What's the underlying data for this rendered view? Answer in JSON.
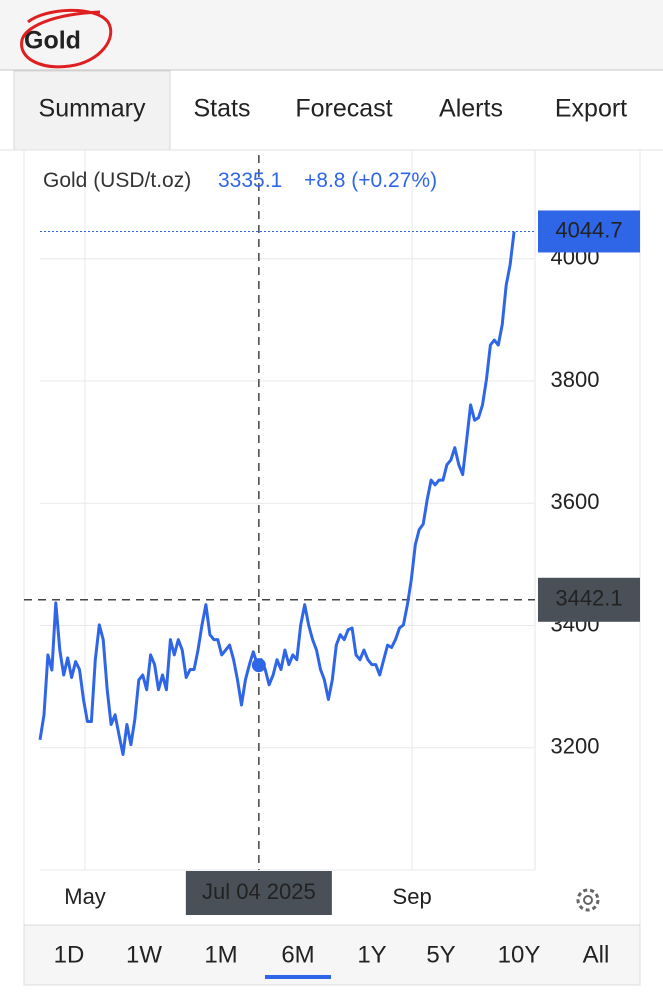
{
  "header": {
    "title": "Gold"
  },
  "tabs": {
    "items": [
      "Summary",
      "Stats",
      "Forecast",
      "Alerts",
      "Export"
    ],
    "active": 0
  },
  "chart_data": {
    "type": "line",
    "legend": {
      "name": "Gold (USD/t.oz)",
      "value": 3335.1,
      "change": "+8.8 (+0.27%)"
    },
    "color": "#2f66e8",
    "x": [
      0,
      1,
      2,
      3,
      4,
      5,
      6,
      7,
      8,
      9,
      10,
      11,
      12,
      13,
      14,
      15,
      16,
      17,
      18,
      19,
      20,
      21,
      22,
      23,
      24,
      25,
      26,
      27,
      28,
      29,
      30,
      31,
      32,
      33,
      34,
      35,
      36,
      37,
      38,
      39,
      40,
      41,
      42,
      43,
      44,
      45,
      46,
      47,
      48,
      49,
      50,
      51,
      52,
      53,
      54,
      55,
      56,
      57,
      58,
      59,
      60,
      61,
      62,
      63,
      64,
      65,
      66,
      67,
      68,
      69,
      70,
      71,
      72,
      73,
      74,
      75,
      76,
      77,
      78,
      79,
      80,
      81,
      82,
      83,
      84,
      85,
      86,
      87,
      88,
      89,
      90,
      91,
      92,
      93,
      94,
      95,
      96,
      97,
      98,
      99,
      100,
      101,
      102,
      103,
      104,
      105,
      106,
      107,
      108,
      109,
      110,
      111,
      112,
      113,
      114,
      115,
      116,
      117,
      118,
      119,
      120
    ],
    "values": [
      3213,
      3254,
      3352,
      3327,
      3437,
      3360,
      3319,
      3347,
      3315,
      3341,
      3328,
      3279,
      3243,
      3243,
      3344,
      3401,
      3377,
      3295,
      3238,
      3254,
      3221,
      3189,
      3238,
      3205,
      3246,
      3311,
      3319,
      3295,
      3352,
      3336,
      3295,
      3319,
      3295,
      3377,
      3352,
      3377,
      3360,
      3315,
      3328,
      3328,
      3360,
      3401,
      3434,
      3385,
      3377,
      3377,
      3352,
      3360,
      3368,
      3344,
      3311,
      3270,
      3311,
      3336,
      3357,
      3336,
      3344,
      3328,
      3303,
      3319,
      3344,
      3328,
      3360,
      3336,
      3352,
      3344,
      3401,
      3434,
      3401,
      3377,
      3360,
      3328,
      3311,
      3279,
      3311,
      3368,
      3385,
      3377,
      3393,
      3396,
      3352,
      3344,
      3360,
      3344,
      3336,
      3336,
      3319,
      3344,
      3368,
      3364,
      3377,
      3396,
      3401,
      3434,
      3475,
      3532,
      3557,
      3566,
      3606,
      3638,
      3630,
      3638,
      3638,
      3663,
      3671,
      3691,
      3663,
      3647,
      3704,
      3761,
      3736,
      3740,
      3761,
      3802,
      3859,
      3867,
      3859,
      3892,
      3957,
      3990,
      4044.7
    ],
    "xlim": [
      0,
      125.3
    ],
    "xticks": [
      {
        "value": 11.4,
        "label": "May"
      },
      {
        "value": 94.2,
        "label": "Sep"
      }
    ],
    "ylim": [
      3000,
      4178
    ],
    "yticks": [
      3200,
      3400,
      3600,
      3800,
      4000
    ],
    "grid": true,
    "crosshair": {
      "x": {
        "value": 55.4,
        "label": "Jul 04 2025"
      },
      "y": 3442.1
    }
  },
  "ranges": {
    "items": [
      "1D",
      "1W",
      "1M",
      "6M",
      "1Y",
      "5Y",
      "10Y",
      "All"
    ],
    "active": 3
  }
}
